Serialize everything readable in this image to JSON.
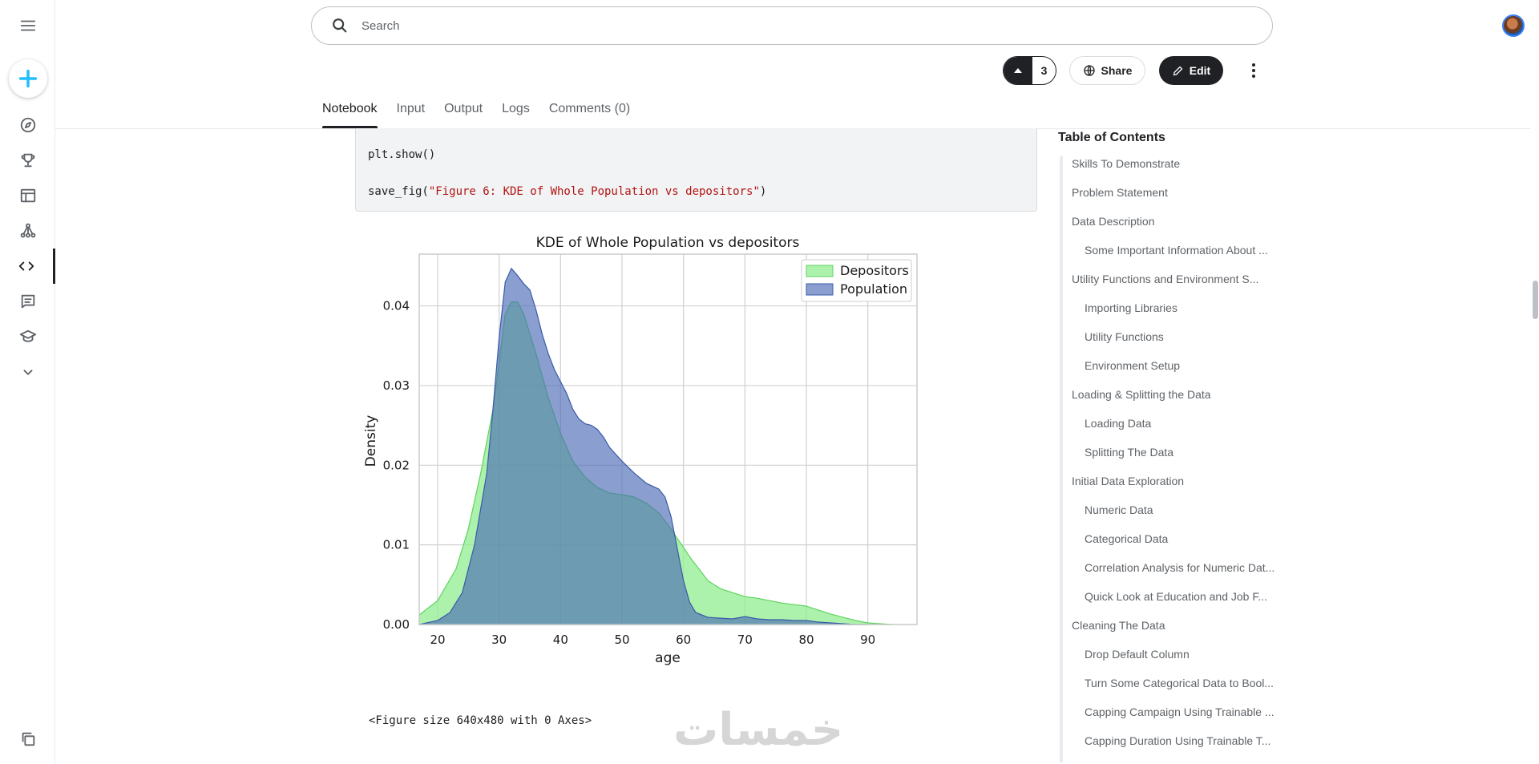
{
  "sidebar": {
    "icons": [
      "menu-icon",
      "create-icon",
      "compass-icon",
      "trophy-icon",
      "table-icon",
      "models-icon",
      "code-icon",
      "comments-icon",
      "learn-icon",
      "chevron-down-icon",
      "copy-icon"
    ]
  },
  "search": {
    "placeholder": "Search"
  },
  "actions": {
    "vote_count": "3",
    "share_label": "Share",
    "edit_label": "Edit"
  },
  "tabs": [
    {
      "label": "Notebook",
      "active": true
    },
    {
      "label": "Input"
    },
    {
      "label": "Output"
    },
    {
      "label": "Logs"
    },
    {
      "label": "Comments (0)"
    }
  ],
  "code": {
    "line1": "plt.show()",
    "line2_fn": "save_fig(",
    "line2_str": "\"Figure 6: KDE of Whole Population vs depositors\"",
    "line2_end": ")"
  },
  "chart_data": {
    "type": "area",
    "title": "KDE of Whole Population vs depositors",
    "xlabel": "age",
    "ylabel": "Density",
    "xlim": [
      17,
      98
    ],
    "ylim": [
      0,
      0.0465
    ],
    "xticks": [
      "20",
      "30",
      "40",
      "50",
      "60",
      "70",
      "80",
      "90"
    ],
    "xtick_values": [
      20,
      30,
      40,
      50,
      60,
      70,
      80,
      90
    ],
    "yticks": [
      "0.00",
      "0.01",
      "0.02",
      "0.03",
      "0.04"
    ],
    "ytick_values": [
      0,
      0.01,
      0.02,
      0.03,
      0.04
    ],
    "grid": true,
    "legend_position": "top-right",
    "series": [
      {
        "name": "Depositors",
        "color": "#90ee90",
        "x": [
          17,
          20,
          23,
          25,
          27,
          29,
          30,
          31,
          32,
          33,
          34,
          36,
          38,
          40,
          42,
          44,
          46,
          48,
          50,
          52,
          54,
          56,
          58,
          59,
          60,
          61,
          62,
          64,
          66,
          68,
          70,
          72,
          74,
          76,
          78,
          80,
          82,
          84,
          86,
          88,
          90,
          92,
          94
        ],
        "y": [
          0.0012,
          0.003,
          0.007,
          0.012,
          0.019,
          0.027,
          0.033,
          0.039,
          0.0405,
          0.0405,
          0.039,
          0.034,
          0.0285,
          0.024,
          0.0205,
          0.0185,
          0.0172,
          0.0165,
          0.0163,
          0.016,
          0.0152,
          0.014,
          0.012,
          0.0108,
          0.0097,
          0.0085,
          0.0075,
          0.0055,
          0.0045,
          0.004,
          0.0035,
          0.0033,
          0.003,
          0.0027,
          0.0025,
          0.0023,
          0.0018,
          0.0013,
          0.0009,
          0.0005,
          0.0002,
          0.0001,
          0
        ]
      },
      {
        "name": "Population",
        "color": "#4c6bb5",
        "x": [
          17,
          20,
          22,
          24,
          26,
          28,
          29,
          30,
          31,
          32,
          33,
          34,
          35,
          36,
          37,
          38,
          39,
          40,
          41,
          42,
          43,
          44,
          45,
          46,
          47,
          48,
          50,
          52,
          54,
          56,
          57,
          58,
          59,
          60,
          61,
          62,
          64,
          66,
          68,
          70,
          72,
          74,
          76,
          78,
          80,
          82,
          84,
          86,
          88,
          90
        ],
        "y": [
          0,
          0.0005,
          0.0015,
          0.004,
          0.01,
          0.019,
          0.027,
          0.036,
          0.043,
          0.0447,
          0.0438,
          0.0428,
          0.042,
          0.0395,
          0.0365,
          0.034,
          0.032,
          0.0305,
          0.029,
          0.027,
          0.0258,
          0.0252,
          0.025,
          0.0245,
          0.0235,
          0.0222,
          0.0205,
          0.019,
          0.0177,
          0.017,
          0.016,
          0.0135,
          0.0095,
          0.0055,
          0.0028,
          0.0015,
          0.0009,
          0.0008,
          0.0007,
          0.001,
          0.0007,
          0.0006,
          0.0006,
          0.0005,
          0.0005,
          0.0003,
          0.0002,
          0.0001,
          0,
          0
        ]
      }
    ]
  },
  "output_text": "<Figure size 640x480 with 0 Axes>",
  "watermark": "خمسات",
  "toc": {
    "title": "Table of Contents",
    "items": [
      {
        "label": "Skills To Demonstrate",
        "level": 1
      },
      {
        "label": "Problem Statement",
        "level": 1
      },
      {
        "label": "Data Description",
        "level": 1
      },
      {
        "label": "Some Important Information About ...",
        "level": 2
      },
      {
        "label": "Utility Functions and Environment S...",
        "level": 1
      },
      {
        "label": "Importing Libraries",
        "level": 2
      },
      {
        "label": "Utility Functions",
        "level": 2
      },
      {
        "label": "Environment Setup",
        "level": 2
      },
      {
        "label": "Loading & Splitting the Data",
        "level": 1
      },
      {
        "label": "Loading Data",
        "level": 2
      },
      {
        "label": "Splitting The Data",
        "level": 2
      },
      {
        "label": "Initial Data Exploration",
        "level": 1
      },
      {
        "label": "Numeric Data",
        "level": 2
      },
      {
        "label": "Categorical Data",
        "level": 2
      },
      {
        "label": "Correlation Analysis for Numeric Dat...",
        "level": 2
      },
      {
        "label": "Quick Look at Education and Job F...",
        "level": 2
      },
      {
        "label": "Cleaning The Data",
        "level": 1
      },
      {
        "label": "Drop Default Column",
        "level": 2
      },
      {
        "label": "Turn Some Categorical Data to Bool...",
        "level": 2
      },
      {
        "label": "Capping Campaign Using Trainable ...",
        "level": 2
      },
      {
        "label": "Capping Duration Using Trainable T...",
        "level": 2
      }
    ]
  }
}
